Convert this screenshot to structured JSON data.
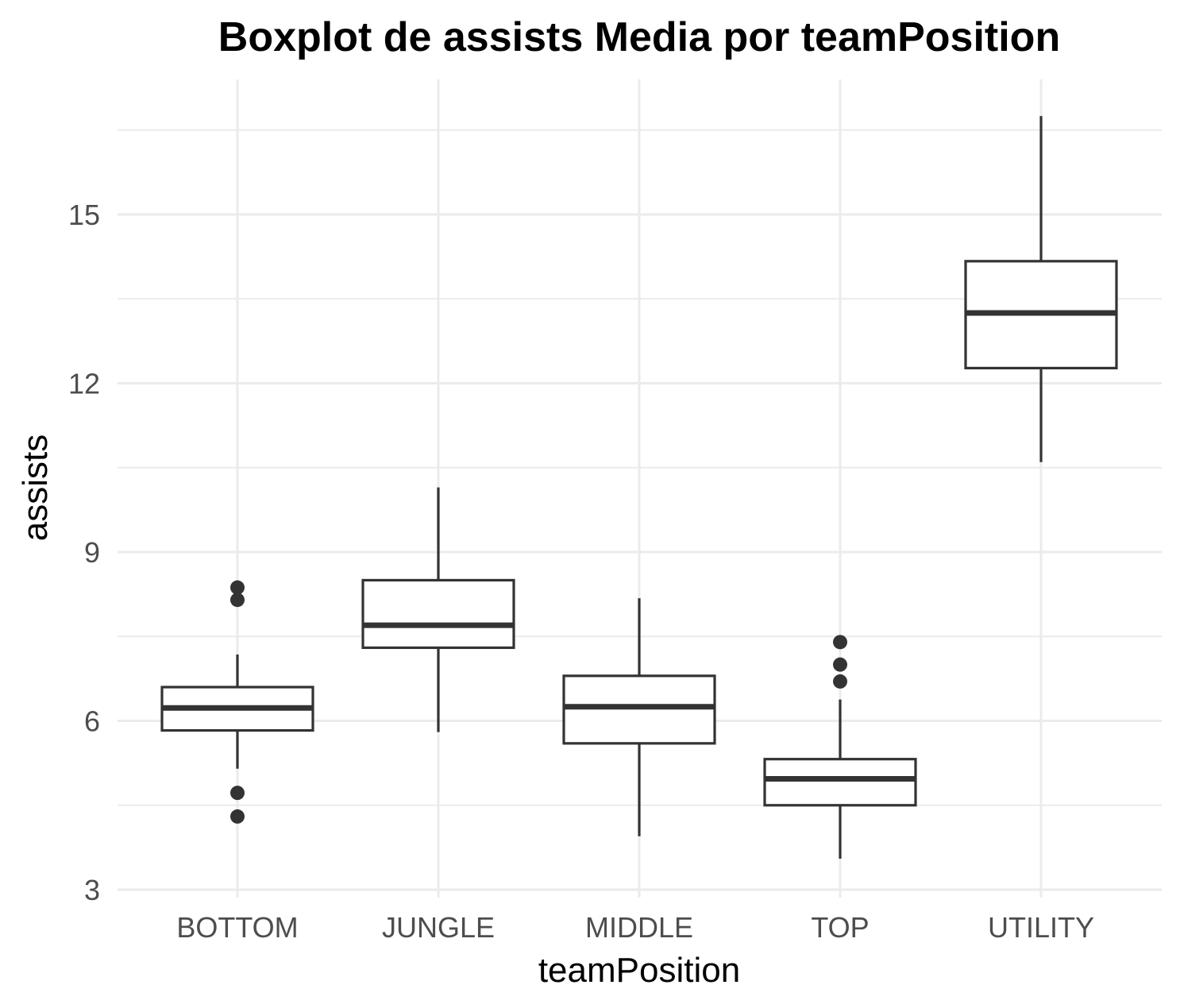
{
  "chart_data": {
    "type": "boxplot",
    "title": "Boxplot de assists Media por teamPosition",
    "xlabel": "teamPosition",
    "ylabel": "assists",
    "ylim": [
      2.85,
      17.25
    ],
    "yticks": [
      3,
      6,
      9,
      12,
      15
    ],
    "yticklabels": [
      "3",
      "6",
      "9",
      "12",
      "15"
    ],
    "grid": true,
    "legend": "none",
    "box_fill": "#ffffff",
    "line_color": "#333333",
    "grid_color": "#ebebeb",
    "categories": [
      "BOTTOM",
      "JUNGLE",
      "MIDDLE",
      "TOP",
      "UTILITY"
    ],
    "boxes": [
      {
        "category": "BOTTOM",
        "whisker_low": 5.15,
        "q1": 5.83,
        "median": 6.23,
        "q3": 6.6,
        "whisker_high": 7.18,
        "outliers": [
          4.3,
          4.72,
          8.15,
          8.37
        ]
      },
      {
        "category": "JUNGLE",
        "whisker_low": 5.8,
        "q1": 7.3,
        "median": 7.7,
        "q3": 8.5,
        "whisker_high": 10.15,
        "outliers": []
      },
      {
        "category": "MIDDLE",
        "whisker_low": 3.95,
        "q1": 5.6,
        "median": 6.25,
        "q3": 6.8,
        "whisker_high": 8.18,
        "outliers": []
      },
      {
        "category": "TOP",
        "whisker_low": 3.55,
        "q1": 4.5,
        "median": 4.97,
        "q3": 5.32,
        "whisker_high": 6.38,
        "outliers": [
          6.7,
          7.0,
          7.4
        ]
      },
      {
        "category": "UTILITY",
        "whisker_low": 10.6,
        "q1": 12.27,
        "median": 13.25,
        "q3": 14.17,
        "whisker_high": 16.75,
        "outliers": []
      }
    ]
  }
}
